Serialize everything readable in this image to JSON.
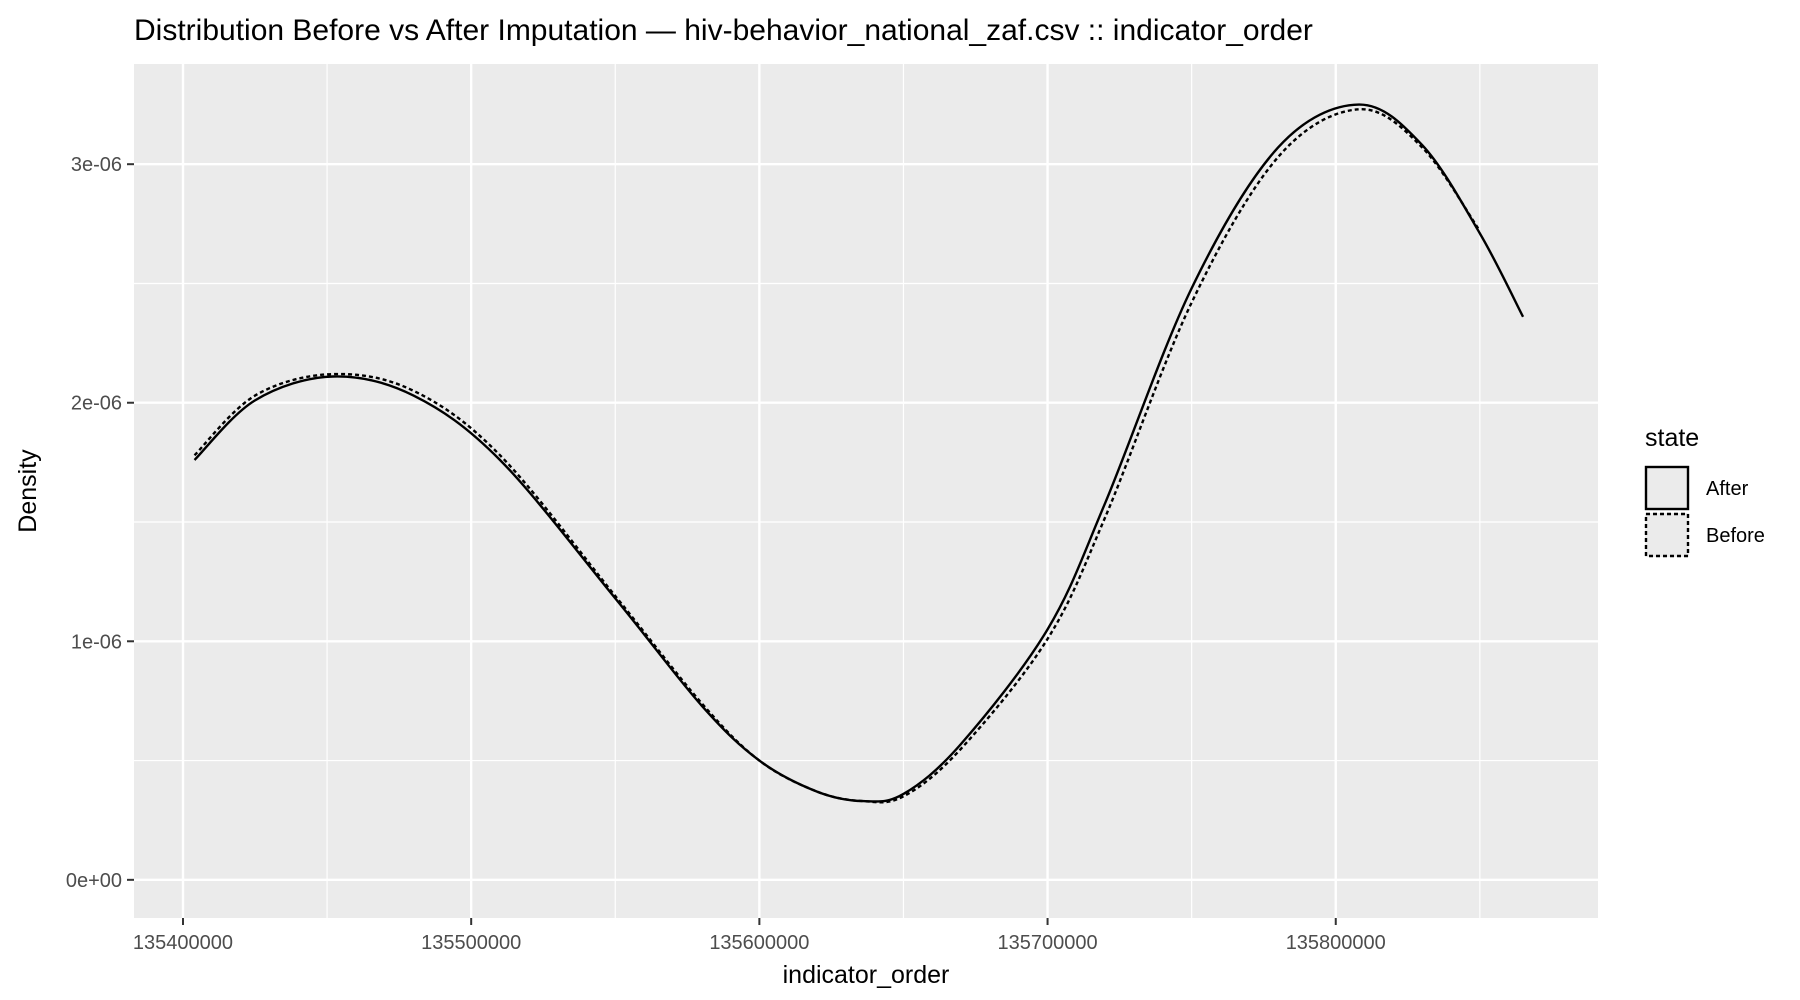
{
  "chart_data": {
    "type": "line",
    "title": "Distribution Before vs After Imputation — hiv-behavior_national_zaf.csv :: indicator_order",
    "xlabel": "indicator_order",
    "ylabel": "Density",
    "xlim": [
      135383000,
      135891000
    ],
    "ylim": [
      -1.6e-07,
      3.42e-06
    ],
    "x_ticks": [
      135400000,
      135500000,
      135600000,
      135700000,
      135800000
    ],
    "x_tick_labels": [
      "135400000",
      "135500000",
      "135600000",
      "135700000",
      "135800000"
    ],
    "y_ticks": [
      0,
      1e-06,
      2e-06,
      3e-06
    ],
    "y_tick_labels": [
      "0e+00",
      "1e-06",
      "2e-06",
      "3e-06"
    ],
    "grid": true,
    "legend": {
      "title": "state",
      "position": "right",
      "entries": [
        "After",
        "Before"
      ]
    },
    "series": [
      {
        "name": "After",
        "line_style": "solid",
        "color": "#000000",
        "x": [
          135404000,
          135425000,
          135452000,
          135480000,
          135510000,
          135550000,
          135580000,
          135600000,
          135620000,
          135636000,
          135650000,
          135670000,
          135700000,
          135720000,
          135750000,
          135780000,
          135808000,
          135830000,
          135850000,
          135865000
        ],
        "y": [
          1.76e-06,
          2.01e-06,
          2.11e-06,
          2.03e-06,
          1.76e-06,
          1.18e-06,
          7.3e-07,
          5e-07,
          3.7e-07,
          3.3e-07,
          3.6e-07,
          5.7e-07,
          1.05e-06,
          1.58e-06,
          2.48e-06,
          3.07e-06,
          3.25e-06,
          3.08e-06,
          2.71e-06,
          2.36e-06
        ]
      },
      {
        "name": "Before",
        "line_style": "dashed",
        "color": "#000000",
        "x": [
          135404000,
          135425000,
          135452000,
          135480000,
          135510000,
          135550000,
          135580000,
          135600000,
          135620000,
          135636000,
          135650000,
          135670000,
          135700000,
          135720000,
          135750000,
          135780000,
          135808000,
          135830000,
          135850000
        ],
        "y": [
          1.78e-06,
          2.03e-06,
          2.12e-06,
          2.05e-06,
          1.78e-06,
          1.19e-06,
          7.4e-07,
          5e-07,
          3.7e-07,
          3.3e-07,
          3.5e-07,
          5.5e-07,
          1.01e-06,
          1.52e-06,
          2.42e-06,
          3.03e-06,
          3.23e-06,
          3.07e-06,
          2.72e-06
        ]
      }
    ]
  }
}
